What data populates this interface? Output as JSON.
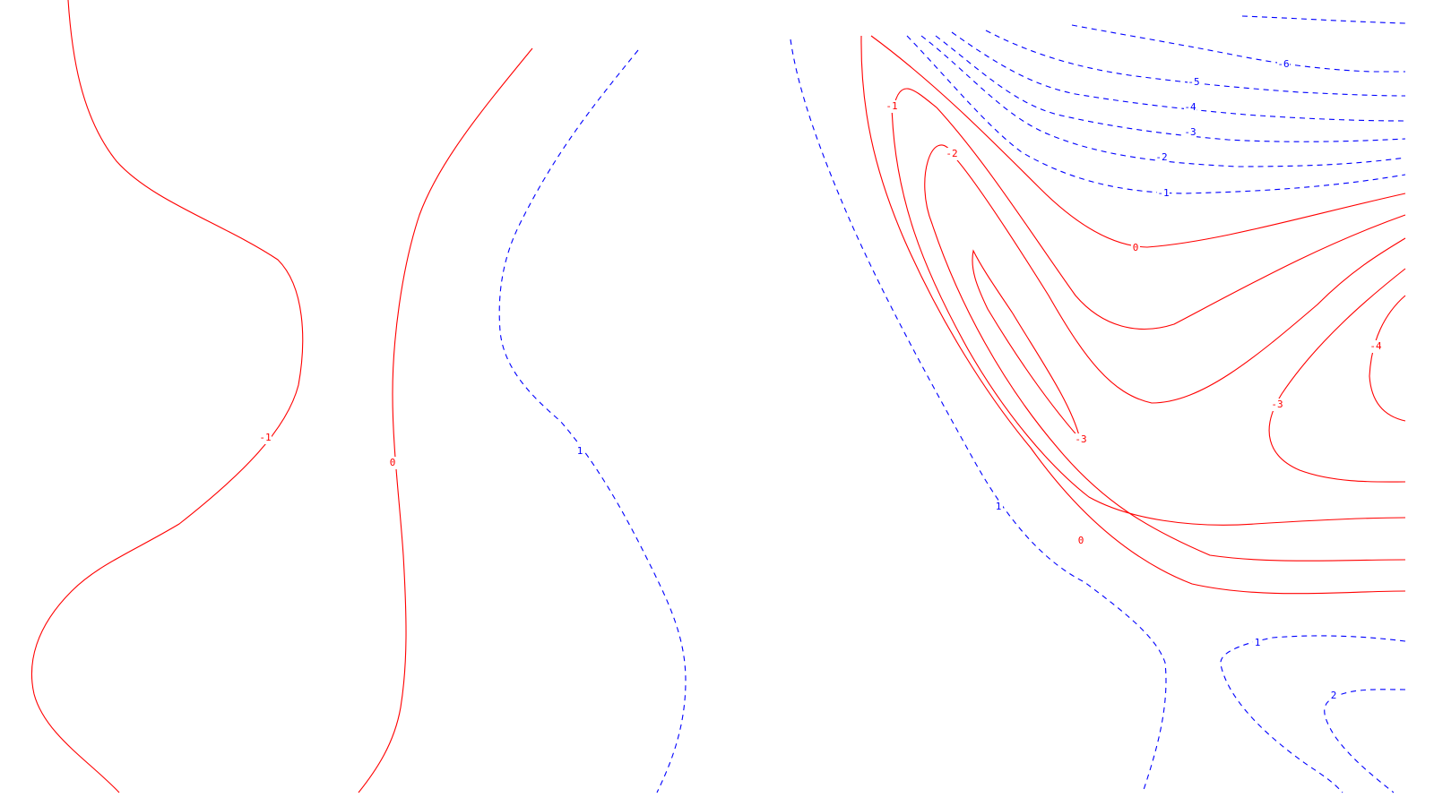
{
  "chart_data": {
    "type": "contour",
    "title": "",
    "xlabel": "",
    "ylabel": "",
    "grid": false,
    "legend": "none",
    "style": {
      "positive_color": "#0000ff",
      "positive_linestyle": "dashed",
      "nonpositive_color": "#ff0000",
      "nonpositive_linestyle": "solid"
    },
    "contour_labels": [
      "-1",
      "0",
      "1",
      "-1",
      "-2",
      "-3",
      "0",
      "-3",
      "-4",
      "0",
      "1",
      "-1",
      "-2",
      "-3",
      "-4",
      "-5",
      "-6",
      "1",
      "2"
    ]
  }
}
